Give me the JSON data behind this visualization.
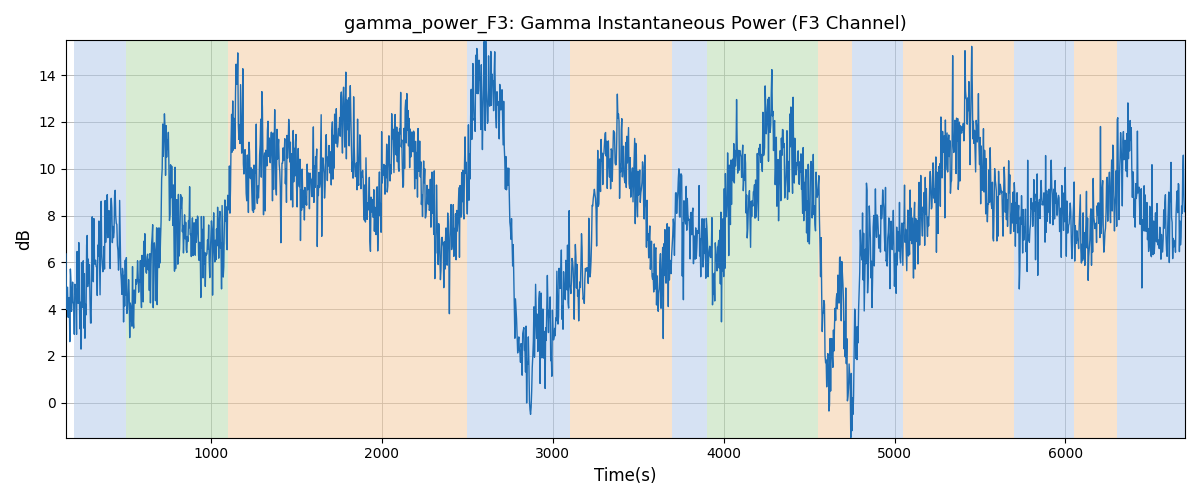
{
  "title": "gamma_power_F3: Gamma Instantaneous Power (F3 Channel)",
  "xlabel": "Time(s)",
  "ylabel": "dB",
  "line_color": "#1f6eb5",
  "line_width": 1.0,
  "background_color": "#ffffff",
  "grid_color": "#b0b0b0",
  "ylim": [
    -1.5,
    15.5
  ],
  "xlim": [
    150,
    6700
  ],
  "regions": [
    {
      "start": 200,
      "end": 500,
      "color": "#aec6e8",
      "alpha": 0.5
    },
    {
      "start": 500,
      "end": 1100,
      "color": "#b2d8a8",
      "alpha": 0.5
    },
    {
      "start": 1100,
      "end": 2500,
      "color": "#f5c99a",
      "alpha": 0.5
    },
    {
      "start": 2500,
      "end": 3100,
      "color": "#aec6e8",
      "alpha": 0.5
    },
    {
      "start": 3100,
      "end": 3700,
      "color": "#f5c99a",
      "alpha": 0.5
    },
    {
      "start": 3700,
      "end": 3900,
      "color": "#aec6e8",
      "alpha": 0.5
    },
    {
      "start": 3900,
      "end": 4550,
      "color": "#b2d8a8",
      "alpha": 0.5
    },
    {
      "start": 4550,
      "end": 4750,
      "color": "#f5c99a",
      "alpha": 0.5
    },
    {
      "start": 4750,
      "end": 5050,
      "color": "#aec6e8",
      "alpha": 0.5
    },
    {
      "start": 5050,
      "end": 5700,
      "color": "#f5c99a",
      "alpha": 0.5
    },
    {
      "start": 5700,
      "end": 6050,
      "color": "#aec6e8",
      "alpha": 0.5
    },
    {
      "start": 6050,
      "end": 6300,
      "color": "#f5c99a",
      "alpha": 0.5
    },
    {
      "start": 6300,
      "end": 6700,
      "color": "#aec6e8",
      "alpha": 0.5
    }
  ]
}
